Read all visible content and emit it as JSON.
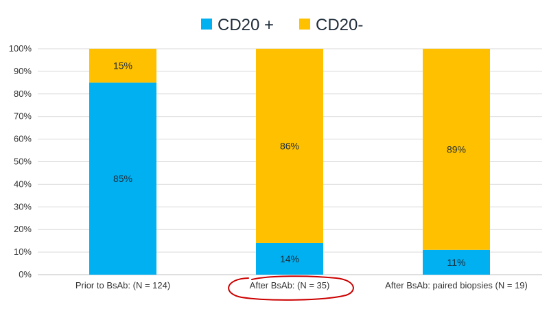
{
  "chart_data": {
    "type": "bar",
    "stacked": true,
    "categories": [
      "Prior to BsAb: (N = 124)",
      "After BsAb: (N = 35)",
      "After BsAb: paired biopsies (N = 19)"
    ],
    "series": [
      {
        "name": "CD20 +",
        "color": "#00b0f0",
        "values": [
          85,
          14,
          11
        ],
        "labels": [
          "85%",
          "14%",
          "11%"
        ]
      },
      {
        "name": "CD20-",
        "color": "#ffc000",
        "values": [
          15,
          86,
          89
        ],
        "labels": [
          "15%",
          "86%",
          "89%"
        ]
      }
    ],
    "ylim": [
      0,
      100
    ],
    "yticks": [
      0,
      10,
      20,
      30,
      40,
      50,
      60,
      70,
      80,
      90,
      100
    ],
    "ytick_labels": [
      "0%",
      "10%",
      "20%",
      "30%",
      "40%",
      "50%",
      "60%",
      "70%",
      "80%",
      "90%",
      "100%"
    ],
    "grid": true,
    "legend_position": "top",
    "highlighted_category_index": 1,
    "highlight_color": "#cc0000"
  }
}
